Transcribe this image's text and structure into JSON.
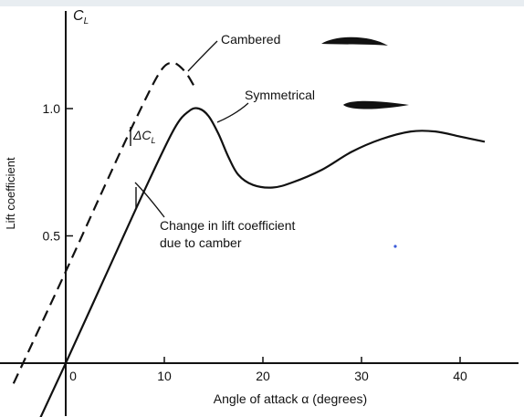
{
  "chart_data": {
    "type": "line",
    "xlabel": "Angle of attack α (degrees)",
    "ylabel": "Lift coefficient",
    "y_axis_symbol": "C",
    "y_axis_symbol_sub": "L",
    "xlim": [
      -6,
      44
    ],
    "ylim": [
      -0.25,
      1.35
    ],
    "x_ticks": [
      0,
      10,
      20,
      30,
      40
    ],
    "x_tick_labels": [
      "0",
      "10",
      "20",
      "30",
      "40"
    ],
    "y_ticks": [
      0.5,
      1.0
    ],
    "y_tick_labels": [
      "0.5",
      "1.0"
    ],
    "grid": false,
    "series": [
      {
        "name": "Cambered",
        "line_style": "dashed",
        "color": "#111111",
        "x": [
          -5.3,
          0,
          4,
          7,
          9.5,
          10.8,
          12,
          13
        ],
        "y": [
          -0.08,
          0.36,
          0.7,
          0.95,
          1.14,
          1.18,
          1.15,
          1.09
        ]
      },
      {
        "name": "Symmetrical",
        "line_style": "solid",
        "color": "#111111",
        "x": [
          -3,
          0,
          4,
          8,
          11,
          12.5,
          13.5,
          14.5,
          15.5,
          16.5,
          17.5,
          19,
          21,
          23,
          26,
          29,
          32,
          35,
          37.5,
          40,
          42.5
        ],
        "y": [
          -0.25,
          0,
          0.34,
          0.68,
          0.92,
          0.99,
          1.0,
          0.97,
          0.9,
          0.81,
          0.74,
          0.7,
          0.69,
          0.71,
          0.76,
          0.83,
          0.88,
          0.91,
          0.91,
          0.89,
          0.87
        ]
      }
    ],
    "annotations": [
      {
        "text": "Cambered",
        "points_to": "Cambered"
      },
      {
        "text": "Symmetrical",
        "points_to": "Symmetrical"
      },
      {
        "text": "ΔC",
        "sub": "L"
      },
      {
        "text_lines": [
          "Change in lift coefficient",
          "due to camber"
        ]
      }
    ]
  }
}
